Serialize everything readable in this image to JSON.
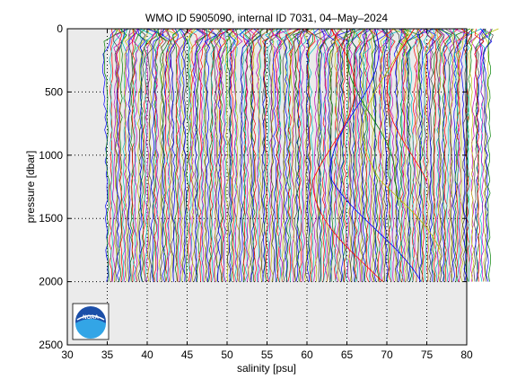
{
  "chart_data": {
    "type": "line",
    "title": "WMO ID 5905090, internal ID 7031, 04–May–2024",
    "xlabel": "salinity [psu]",
    "ylabel": "pressure [dbar]",
    "xlim": [
      30,
      80
    ],
    "ylim": [
      2500,
      0
    ],
    "y_inverted": true,
    "grid": true,
    "x_ticks": [
      30,
      35,
      40,
      45,
      50,
      55,
      60,
      65,
      70,
      75,
      80
    ],
    "y_ticks": [
      0,
      500,
      1000,
      1500,
      2000,
      2500
    ],
    "x_tick_labels": [
      "30",
      "35",
      "40",
      "45",
      "50",
      "55",
      "60",
      "65",
      "70",
      "75",
      "80"
    ],
    "y_tick_labels": [
      "0",
      "500",
      "1000",
      "1500",
      "2000",
      "2500"
    ],
    "profile_count": 240,
    "profiles_offset_psu": 0.2,
    "base_salinity_psu": 35.0,
    "profile_max_pressure_dbar": 2000,
    "logo": "noaa-logo",
    "colors": {
      "background": "#ffffff",
      "axes_face": "#ebebeb",
      "palette": [
        "#0000ff",
        "#008000",
        "#ff0000",
        "#00bfbf",
        "#bf00bf",
        "#bfbf00",
        "#404040"
      ]
    }
  }
}
